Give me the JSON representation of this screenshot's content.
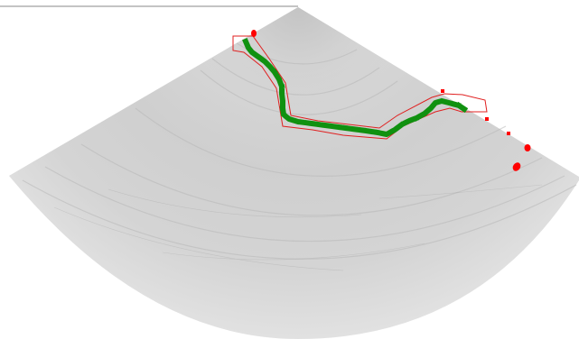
{
  "colors": {
    "background": "#ffffff",
    "fan_light": "#d9d9d9",
    "fan_mid": "#c7c7c7",
    "fan_dark": "#a8a8a8",
    "ring": "#bdbdbd",
    "trace_green": "#109110",
    "outline_red": "#e02020",
    "marker_red": "#ff0000",
    "top_line": "#8a8a8a"
  },
  "layers": [
    "ultrasound-fan",
    "red-boundary-outline",
    "green-trace",
    "red-markers"
  ]
}
